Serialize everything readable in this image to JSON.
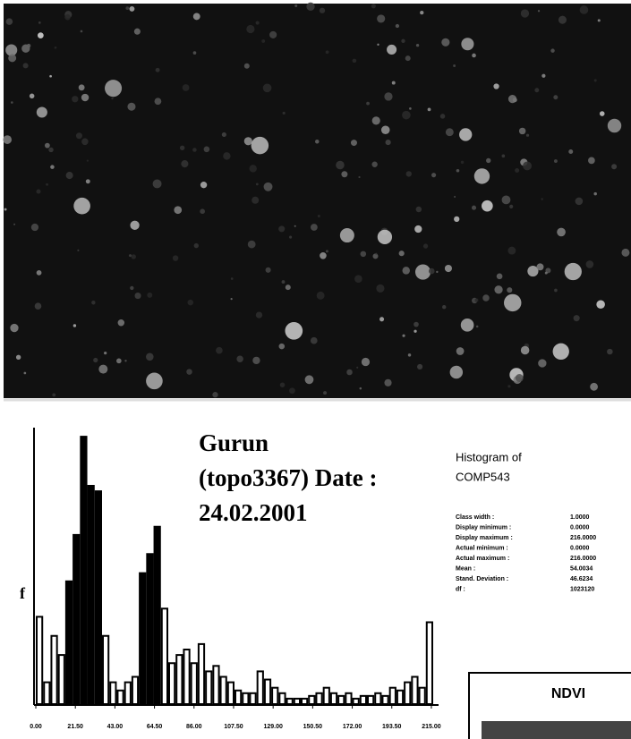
{
  "chart_data": {
    "type": "histogram",
    "title": [
      "Gurun",
      "(topo3367) Date :",
      "24.02.2001"
    ],
    "y_label": "f",
    "side_title": [
      "Histogram of",
      "COMP543"
    ],
    "stats": [
      [
        "Class width :",
        "1.0000"
      ],
      [
        "Display minimum :",
        "0.0000"
      ],
      [
        "Display maximum :",
        "216.0000"
      ],
      [
        "Actual minimum :",
        "0.0000"
      ],
      [
        "Actual maximum :",
        "216.0000"
      ],
      [
        "Mean :",
        "54.0034"
      ],
      [
        "Stand. Deviation :",
        "46.6234"
      ],
      [
        "df :",
        "1023120"
      ]
    ],
    "inset_title": "NDVI",
    "bins": [
      0,
      4,
      8,
      12,
      16,
      20,
      24,
      28,
      32,
      36,
      40,
      44,
      48,
      52,
      56,
      60,
      64,
      68,
      72,
      76,
      80,
      84,
      88,
      92,
      96,
      100,
      104,
      108,
      112,
      116,
      120,
      124,
      128,
      132,
      136,
      140,
      144,
      148,
      152,
      156,
      160,
      164,
      168,
      172,
      176,
      180,
      184,
      188,
      192,
      196,
      200,
      204,
      208,
      212,
      216
    ],
    "values": [
      32,
      8,
      25,
      18,
      45,
      62,
      98,
      80,
      78,
      25,
      8,
      5,
      8,
      10,
      48,
      55,
      65,
      35,
      15,
      18,
      20,
      15,
      22,
      12,
      14,
      10,
      8,
      5,
      4,
      4,
      12,
      9,
      6,
      4,
      2,
      2,
      2,
      3,
      4,
      6,
      4,
      3,
      4,
      2,
      3,
      3,
      4,
      3,
      6,
      5,
      8,
      10,
      6,
      30
    ],
    "color": "#000000",
    "xlim": [
      0,
      216
    ],
    "ylim": [
      0,
      100
    ],
    "xticks": [
      {
        "value": 0,
        "label": "0.00"
      },
      {
        "value": 21.5,
        "label": "21.50"
      },
      {
        "value": 43,
        "label": "43.00"
      },
      {
        "value": 64.5,
        "label": "64.50"
      },
      {
        "value": 86,
        "label": "86.00"
      },
      {
        "value": 107.5,
        "label": "107.50"
      },
      {
        "value": 129,
        "label": "129.00"
      },
      {
        "value": 150.5,
        "label": "150.50"
      },
      {
        "value": 172,
        "label": "172.00"
      },
      {
        "value": 193.5,
        "label": "193.50"
      },
      {
        "value": 215,
        "label": "215.00"
      }
    ]
  }
}
